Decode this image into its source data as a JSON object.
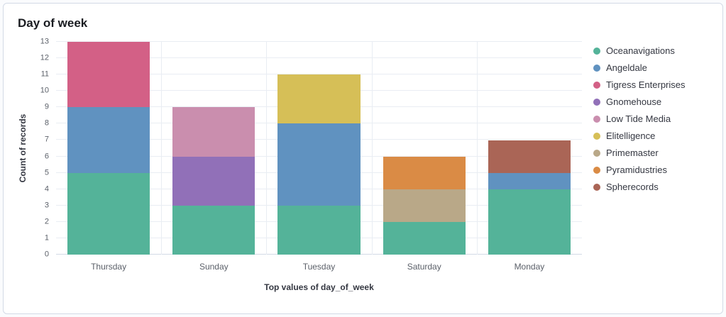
{
  "panel": {
    "title": "Day of week"
  },
  "chart_data": {
    "type": "bar",
    "stacked": true,
    "title": "Day of week",
    "xlabel": "Top values of day_of_week",
    "ylabel": "Count of records",
    "categories": [
      "Thursday",
      "Sunday",
      "Tuesday",
      "Saturday",
      "Monday"
    ],
    "ylim": [
      0,
      13
    ],
    "ytick_step": 1,
    "grid": "horizontal-and-category-boundaries",
    "legend_position": "right",
    "series": [
      {
        "name": "Oceanavigations",
        "color": "#54B399",
        "values": [
          5,
          3,
          3,
          2,
          4
        ]
      },
      {
        "name": "Angeldale",
        "color": "#6092C0",
        "values": [
          4,
          0,
          5,
          0,
          1
        ]
      },
      {
        "name": "Tigress Enterprises",
        "color": "#D36086",
        "values": [
          4,
          0,
          0,
          0,
          0
        ]
      },
      {
        "name": "Gnomehouse",
        "color": "#9170B8",
        "values": [
          0,
          3,
          0,
          0,
          0
        ]
      },
      {
        "name": "Low Tide Media",
        "color": "#CA8EAE",
        "values": [
          0,
          3,
          0,
          0,
          0
        ]
      },
      {
        "name": "Elitelligence",
        "color": "#D6BF57",
        "values": [
          0,
          0,
          3,
          0,
          0
        ]
      },
      {
        "name": "Primemaster",
        "color": "#B9A888",
        "values": [
          0,
          0,
          0,
          2,
          0
        ]
      },
      {
        "name": "Pyramidustries",
        "color": "#DA8B45",
        "values": [
          0,
          0,
          0,
          2,
          0
        ]
      },
      {
        "name": "Spherecords",
        "color": "#AA6556",
        "values": [
          0,
          0,
          0,
          0,
          2
        ]
      }
    ],
    "bar_totals": {
      "Thursday": 13,
      "Sunday": 9,
      "Tuesday": 11,
      "Saturday": 6,
      "Monday": 7
    }
  }
}
